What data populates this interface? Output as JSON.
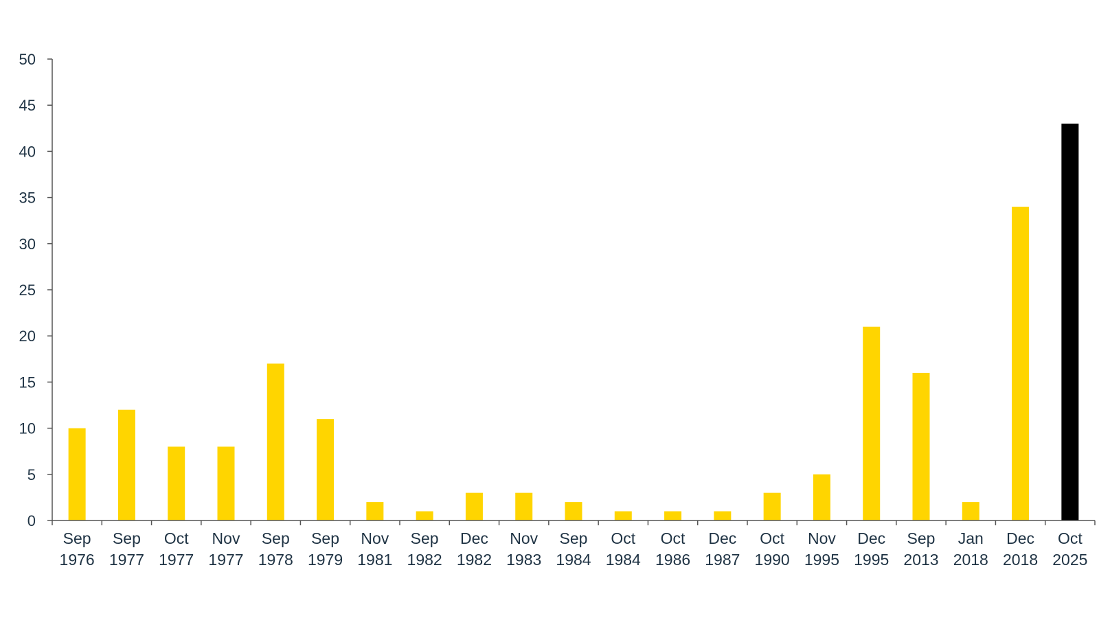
{
  "chart_data": {
    "type": "bar",
    "title": "",
    "xlabel": "",
    "ylabel": "",
    "ylim": [
      0,
      50
    ],
    "yticks": [
      0,
      5,
      10,
      15,
      20,
      25,
      30,
      35,
      40,
      45,
      50
    ],
    "grid": false,
    "legend": "none",
    "categories": [
      [
        "Sep",
        "1976"
      ],
      [
        "Sep",
        "1977"
      ],
      [
        "Oct",
        "1977"
      ],
      [
        "Nov",
        "1977"
      ],
      [
        "Sep",
        "1978"
      ],
      [
        "Sep",
        "1979"
      ],
      [
        "Nov",
        "1981"
      ],
      [
        "Sep",
        "1982"
      ],
      [
        "Dec",
        "1982"
      ],
      [
        "Nov",
        "1983"
      ],
      [
        "Sep",
        "1984"
      ],
      [
        "Oct",
        "1984"
      ],
      [
        "Oct",
        "1986"
      ],
      [
        "Dec",
        "1987"
      ],
      [
        "Oct",
        "1990"
      ],
      [
        "Nov",
        "1995"
      ],
      [
        "Dec",
        "1995"
      ],
      [
        "Sep",
        "2013"
      ],
      [
        "Jan",
        "2018"
      ],
      [
        "Dec",
        "2018"
      ],
      [
        "Oct",
        "2025"
      ]
    ],
    "values": [
      10,
      12,
      8,
      8,
      17,
      11,
      2,
      1,
      3,
      3,
      2,
      1,
      1,
      1,
      3,
      5,
      21,
      16,
      2,
      34,
      43
    ],
    "colors": {
      "bar": "#FFD500",
      "highlight": "#000000",
      "axis": "#555555",
      "text": "#1f3344"
    },
    "highlight_index": 20
  }
}
